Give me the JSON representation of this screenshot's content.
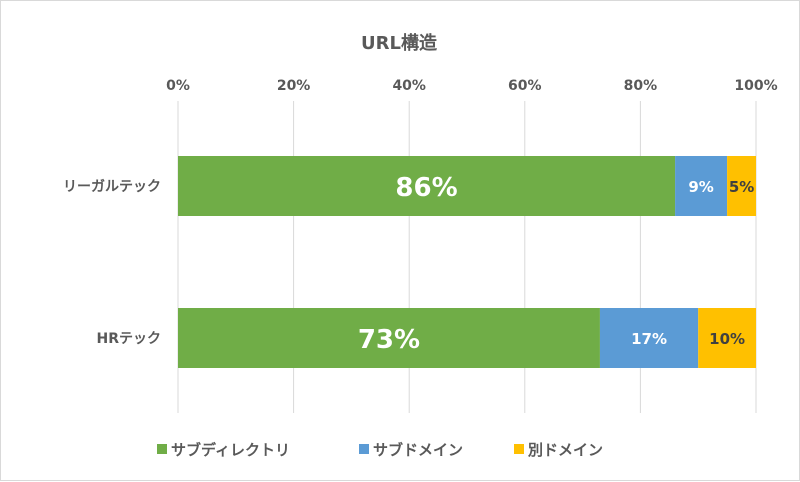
{
  "chart_data": {
    "type": "bar",
    "orientation": "horizontal",
    "stacked": "percent",
    "title": "URL構造",
    "xlabel": "",
    "ylabel": "",
    "xlim": [
      0,
      100
    ],
    "x_ticks": [
      "0%",
      "20%",
      "40%",
      "60%",
      "80%",
      "100%"
    ],
    "x_tick_values": [
      0,
      20,
      40,
      60,
      80,
      100
    ],
    "x_axis_position": "top",
    "grid": true,
    "legend_position": "bottom",
    "categories": [
      "リーガルテック",
      "HRテック"
    ],
    "series": [
      {
        "name": "サブディレクトリ",
        "color": "#70ad47",
        "values": [
          86,
          73
        ],
        "labels": [
          "86%",
          "73%"
        ],
        "label_color": "#ffffff"
      },
      {
        "name": "サブドメイン",
        "color": "#5b9bd5",
        "values": [
          9,
          17
        ],
        "labels": [
          "9%",
          "17%"
        ],
        "label_color": "#ffffff"
      },
      {
        "name": "別ドメイン",
        "color": "#ffc000",
        "values": [
          5,
          10
        ],
        "labels": [
          "5%",
          "10%"
        ],
        "label_color": "#404040"
      }
    ]
  }
}
